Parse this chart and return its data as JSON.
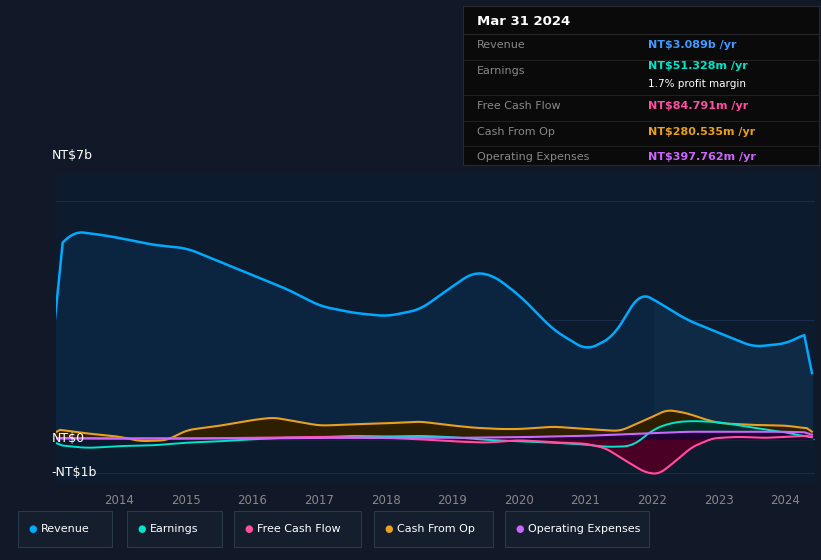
{
  "bg_color": "#111827",
  "chart_bg": "#0d1b2e",
  "ylabel_top": "NT$7b",
  "ylabel_zero": "NT$0",
  "ylabel_neg": "-NT$1b",
  "revenue_color": "#00aaff",
  "earnings_color": "#00e5cc",
  "fcf_color": "#ff4fa0",
  "cashfromop_color": "#e8a020",
  "opex_color": "#cc66ff",
  "grid_color": "#1e3050",
  "zero_line_color": "#888888",
  "tooltip": {
    "date": "Mar 31 2024",
    "revenue_label": "Revenue",
    "revenue_value": "NT$3.089b",
    "revenue_color": "#4499ff",
    "earnings_label": "Earnings",
    "earnings_value": "NT$51.328m",
    "earnings_color": "#00e5cc",
    "margin_text": "1.7% profit margin",
    "fcf_label": "Free Cash Flow",
    "fcf_value": "NT$84.791m",
    "fcf_color": "#ff4fa0",
    "cashop_label": "Cash From Op",
    "cashop_value": "NT$280.535m",
    "cashop_color": "#e8a020",
    "opex_label": "Operating Expenses",
    "opex_value": "NT$397.762m",
    "opex_color": "#cc66ff"
  },
  "legend": [
    {
      "label": "Revenue",
      "color": "#00aaff"
    },
    {
      "label": "Earnings",
      "color": "#00e5cc"
    },
    {
      "label": "Free Cash Flow",
      "color": "#ff4fa0"
    },
    {
      "label": "Cash From Op",
      "color": "#e8a020"
    },
    {
      "label": "Operating Expenses",
      "color": "#cc66ff"
    }
  ]
}
